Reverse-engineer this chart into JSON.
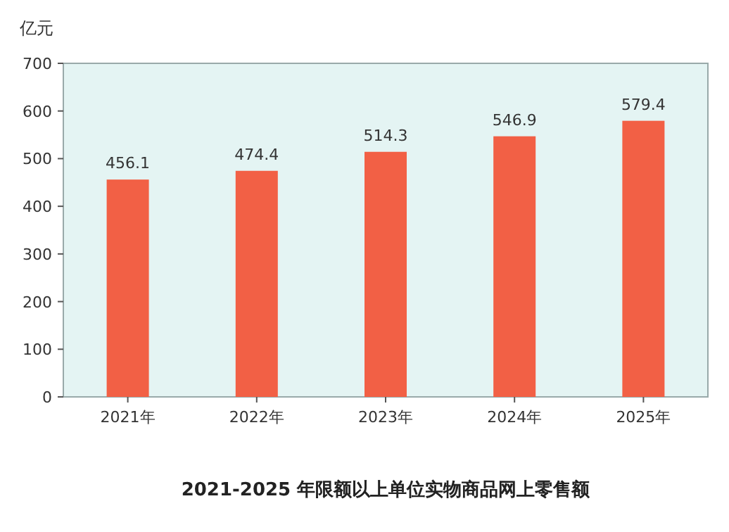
{
  "chart_data": {
    "type": "bar",
    "title": "2021-2025 年限额以上单位实物商品网上零售额",
    "ylabel": "亿元",
    "categories": [
      "2021年",
      "2022年",
      "2023年",
      "2024年",
      "2025年"
    ],
    "values": [
      456.1,
      474.4,
      514.3,
      546.9,
      579.4
    ],
    "color": "#f26045",
    "ylim": [
      0,
      700
    ],
    "yticks": [
      0,
      100,
      200,
      300,
      400,
      500,
      600,
      700
    ],
    "data_labels": true
  }
}
